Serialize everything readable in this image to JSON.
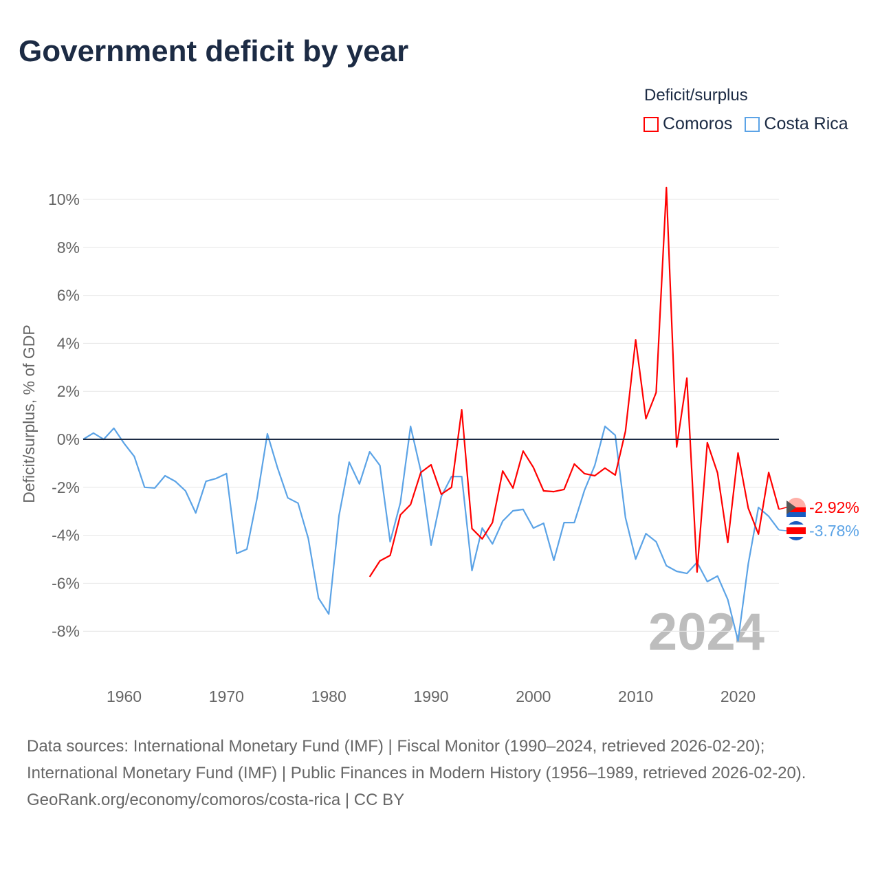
{
  "title": "Government deficit by year",
  "legend": {
    "title": "Deficit/surplus",
    "items": [
      {
        "name": "Comoros",
        "color": "#ff0000"
      },
      {
        "name": "Costa Rica",
        "color": "#5ba3e6"
      }
    ]
  },
  "footer": {
    "sources": "Data sources: International Monetary Fund (IMF) | Fiscal Monitor (1990–2024, retrieved 2026-02-20); International Monetary Fund (IMF) | Public Finances in Modern History (1956–1989, retrieved 2026-02-20).",
    "credit": "GeoRank.org/economy/comoros/costa-rica | CC BY"
  },
  "chart_data": {
    "type": "line",
    "title": "Government deficit by year",
    "xlabel": "",
    "ylabel": "Deficit/surplus, % of GDP",
    "xlim": [
      1956,
      2024
    ],
    "ylim": [
      -9,
      10.5
    ],
    "yticks": [
      10,
      8,
      6,
      4,
      2,
      0,
      -2,
      -4,
      -6,
      -8
    ],
    "ytick_labels": [
      "10%",
      "8%",
      "6%",
      "4%",
      "2%",
      "0%",
      "-2%",
      "-4%",
      "-6%",
      "-8%"
    ],
    "xticks": [
      1960,
      1970,
      1980,
      1990,
      2000,
      2010,
      2020
    ],
    "xtick_labels": [
      "1960",
      "1970",
      "1980",
      "1990",
      "2000",
      "2010",
      "2020"
    ],
    "year_watermark": "2024",
    "grid": true,
    "legend_position": "top-right",
    "series": [
      {
        "name": "Comoros",
        "color": "#ff0000",
        "end_label": "-2.92%",
        "start_year": 1984,
        "values": [
          -5.73,
          -5.07,
          -4.84,
          -3.15,
          -2.72,
          -1.38,
          -1.06,
          -2.29,
          -2.0,
          1.23,
          -3.72,
          -4.15,
          -3.47,
          -1.32,
          -2.03,
          -0.49,
          -1.17,
          -2.15,
          -2.18,
          -2.09,
          -1.03,
          -1.43,
          -1.52,
          -1.2,
          -1.49,
          0.34,
          4.15,
          0.86,
          1.95,
          10.49,
          -0.32,
          2.55,
          -5.53,
          -0.14,
          -1.4,
          -4.3,
          -0.57,
          -2.87,
          -3.95,
          -1.38,
          -2.92
        ]
      },
      {
        "name": "Costa Rica",
        "color": "#5ba3e6",
        "end_label": "-3.78%",
        "start_year": 1956,
        "values": [
          0.0,
          0.26,
          0.0,
          0.46,
          -0.17,
          -0.72,
          -2.0,
          -2.03,
          -1.52,
          -1.75,
          -2.15,
          -3.07,
          -1.75,
          -1.63,
          -1.43,
          -4.76,
          -4.58,
          -2.44,
          0.23,
          -1.2,
          -2.44,
          -2.66,
          -4.13,
          -6.62,
          -7.28,
          -3.18,
          -0.95,
          -1.86,
          -0.52,
          -1.09,
          -4.27,
          -2.64,
          0.54,
          -1.32,
          -4.41,
          -2.38,
          -1.55,
          -1.55,
          -5.47,
          -3.7,
          -4.36,
          -3.41,
          -2.98,
          -2.92,
          -3.7,
          -3.5,
          -5.04,
          -3.47,
          -3.47,
          -2.12,
          -1.09,
          0.54,
          0.17,
          -3.27,
          -4.99,
          -3.93,
          -4.27,
          -5.27,
          -5.5,
          -5.59,
          -5.13,
          -5.93,
          -5.7,
          -6.68,
          -8.4,
          -5.19,
          -2.84,
          -3.21,
          -3.78
        ]
      }
    ]
  }
}
